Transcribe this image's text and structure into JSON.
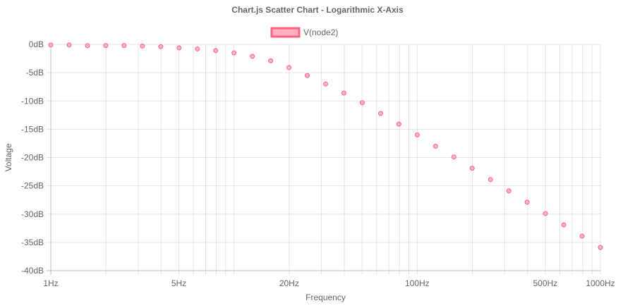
{
  "chart_data": {
    "type": "scatter",
    "title": "Chart.js Scatter Chart - Logarithmic X-Axis",
    "xlabel": "Frequency",
    "ylabel": "Voltage",
    "x_scale": "logarithmic",
    "xlim": [
      1,
      1000
    ],
    "ylim": [
      -40,
      0
    ],
    "grid": true,
    "legend_position": "top",
    "x_ticks": [
      {
        "value": 1,
        "label": "1Hz"
      },
      {
        "value": 5,
        "label": "5Hz"
      },
      {
        "value": 20,
        "label": "20Hz"
      },
      {
        "value": 100,
        "label": "100Hz"
      },
      {
        "value": 500,
        "label": "500Hz"
      },
      {
        "value": 1000,
        "label": "1000Hz"
      }
    ],
    "x_gridlines": [
      1,
      2,
      3,
      4,
      5,
      6,
      7,
      8,
      9,
      10,
      20,
      30,
      40,
      50,
      60,
      70,
      80,
      90,
      100,
      200,
      300,
      400,
      500,
      600,
      700,
      800,
      900,
      1000
    ],
    "y_ticks": [
      {
        "value": 0,
        "label": "0dB"
      },
      {
        "value": -5,
        "label": "-5dB"
      },
      {
        "value": -10,
        "label": "-10dB"
      },
      {
        "value": -15,
        "label": "-15dB"
      },
      {
        "value": -20,
        "label": "-20dB"
      },
      {
        "value": -25,
        "label": "-25dB"
      },
      {
        "value": -30,
        "label": "-30dB"
      },
      {
        "value": -35,
        "label": "-35dB"
      },
      {
        "value": -40,
        "label": "-40dB"
      }
    ],
    "series": [
      {
        "name": "V(node2)",
        "color": "#ff6384",
        "fill": "#ffb1c1",
        "points": [
          {
            "x": 1,
            "y": -0.1
          },
          {
            "x": 1.259,
            "y": -0.1
          },
          {
            "x": 1.585,
            "y": -0.2
          },
          {
            "x": 1.995,
            "y": -0.2
          },
          {
            "x": 2.512,
            "y": -0.2
          },
          {
            "x": 3.162,
            "y": -0.3
          },
          {
            "x": 3.981,
            "y": -0.4
          },
          {
            "x": 5.012,
            "y": -0.6
          },
          {
            "x": 6.31,
            "y": -0.8
          },
          {
            "x": 7.943,
            "y": -1.1
          },
          {
            "x": 10,
            "y": -1.5
          },
          {
            "x": 12.59,
            "y": -2.1
          },
          {
            "x": 15.85,
            "y": -2.9
          },
          {
            "x": 19.95,
            "y": -4.1
          },
          {
            "x": 25.12,
            "y": -5.5
          },
          {
            "x": 31.62,
            "y": -7.0
          },
          {
            "x": 39.81,
            "y": -8.6
          },
          {
            "x": 50.12,
            "y": -10.3
          },
          {
            "x": 63.1,
            "y": -12.2
          },
          {
            "x": 79.43,
            "y": -14.1
          },
          {
            "x": 100,
            "y": -16.0
          },
          {
            "x": 125.9,
            "y": -18.0
          },
          {
            "x": 158.5,
            "y": -19.9
          },
          {
            "x": 199.5,
            "y": -21.9
          },
          {
            "x": 251.2,
            "y": -23.9
          },
          {
            "x": 316.2,
            "y": -25.9
          },
          {
            "x": 398.1,
            "y": -27.9
          },
          {
            "x": 501.2,
            "y": -29.9
          },
          {
            "x": 631,
            "y": -31.9
          },
          {
            "x": 794.3,
            "y": -33.9
          },
          {
            "x": 1000,
            "y": -35.9
          }
        ]
      }
    ]
  }
}
